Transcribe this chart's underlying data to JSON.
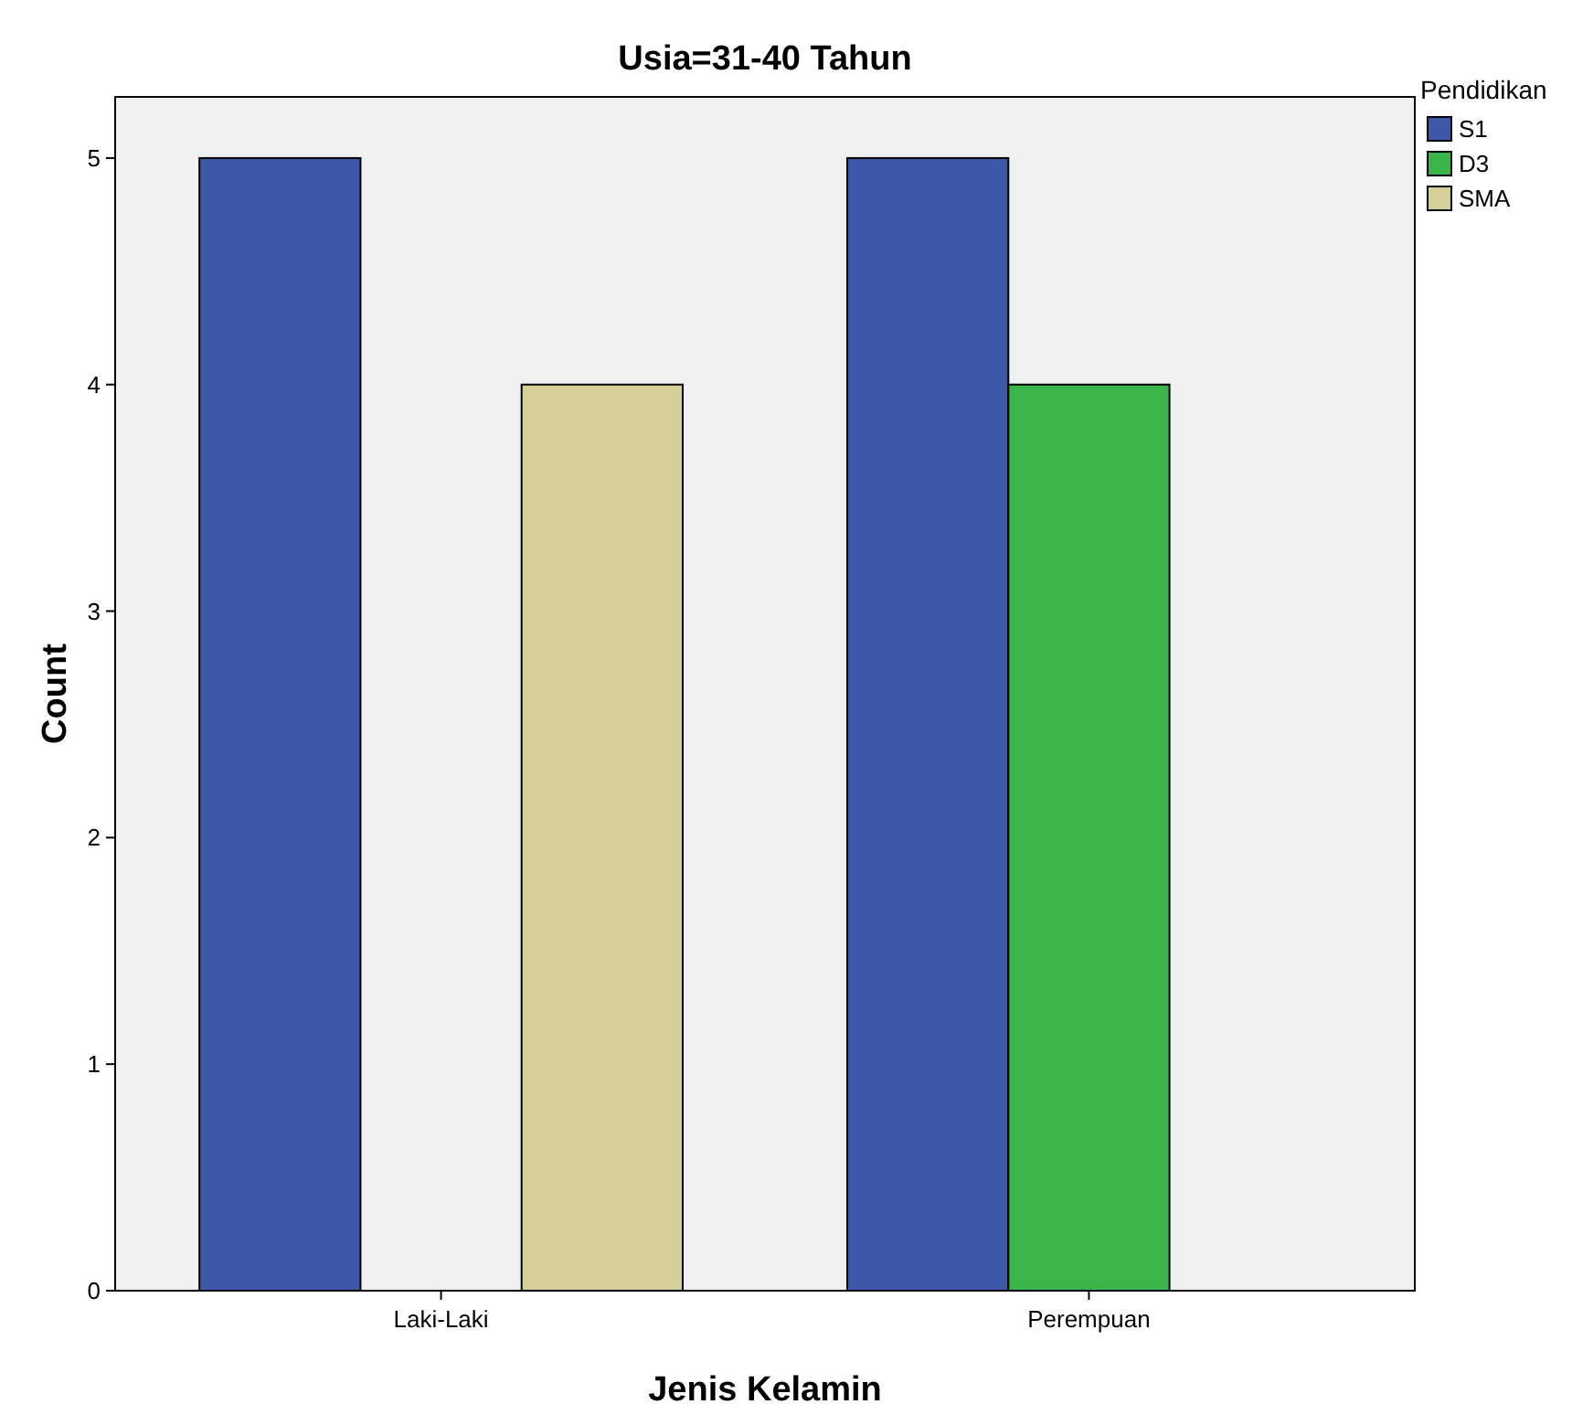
{
  "chart_data": {
    "type": "bar",
    "title": "Usia=31-40 Tahun",
    "xlabel": "Jenis Kelamin",
    "ylabel": "Count",
    "legend_title": "Pendidikan",
    "categories": [
      "Laki-Laki",
      "Perempuan"
    ],
    "series": [
      {
        "name": "S1",
        "color": "#3d58a8",
        "values": [
          5,
          5
        ]
      },
      {
        "name": "D3",
        "color": "#3ab54a",
        "values": [
          null,
          4
        ]
      },
      {
        "name": "SMA",
        "color": "#d5d09a",
        "values": [
          4,
          null
        ]
      }
    ],
    "ylim": [
      0,
      5.27
    ],
    "yticks": [
      0,
      1,
      2,
      3,
      4,
      5
    ],
    "grid": false,
    "legend": "top right"
  }
}
